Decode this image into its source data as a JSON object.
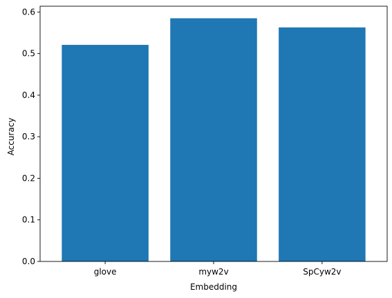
{
  "chart_data": {
    "type": "bar",
    "categories": [
      "glove",
      "myw2v",
      "SpCyw2v"
    ],
    "values": [
      0.521,
      0.585,
      0.563
    ],
    "title": "",
    "xlabel": "Embedding",
    "ylabel": "Accuracy",
    "ylim": [
      0,
      0.614
    ],
    "yticks": [
      0.0,
      0.1,
      0.2,
      0.3,
      0.4,
      0.5,
      0.6
    ],
    "ytick_labels": [
      "0.0",
      "0.1",
      "0.2",
      "0.3",
      "0.4",
      "0.5",
      "0.6"
    ],
    "grid": false,
    "legend": "none",
    "colors": {
      "bar": "#1f77b4",
      "axis": "#000000"
    }
  }
}
